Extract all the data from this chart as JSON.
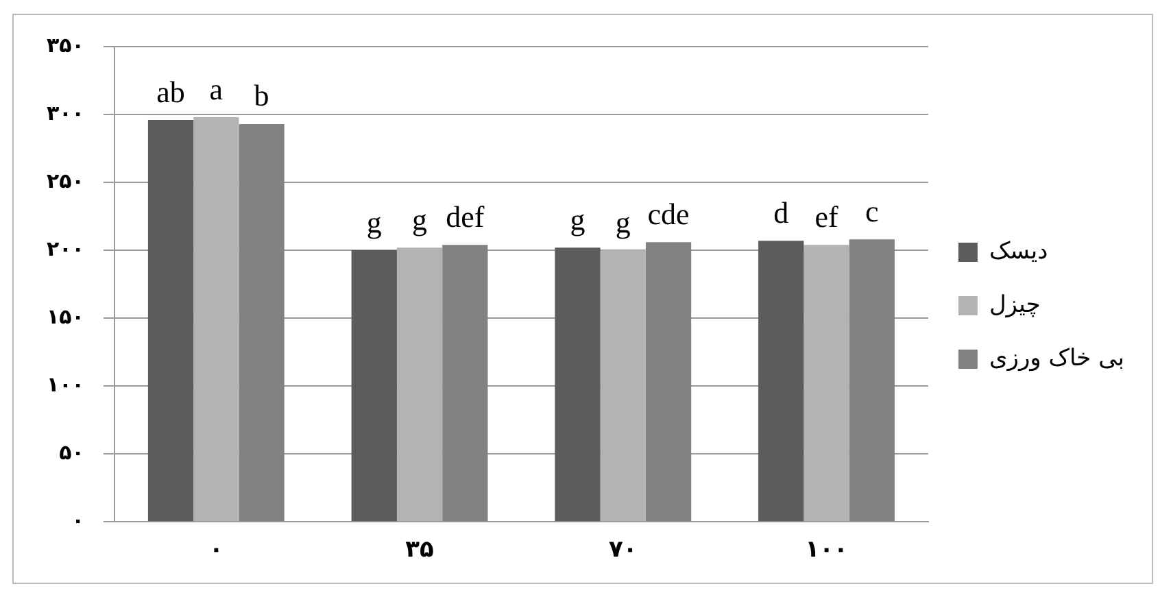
{
  "chart_data": {
    "type": "bar",
    "categories": [
      "۰",
      "۳۵",
      "۷۰",
      "۱۰۰"
    ],
    "series": [
      {
        "name": "دیسک",
        "color": "#5c5c5c",
        "values": [
          296,
          200,
          202,
          207
        ],
        "value_labels": [
          "ab",
          "g",
          "g",
          "d"
        ]
      },
      {
        "name": "چیزل",
        "color": "#b3b3b3",
        "values": [
          298,
          202,
          200,
          204
        ],
        "value_labels": [
          "a",
          "g",
          "g",
          "ef"
        ]
      },
      {
        "name": "بی خاک ورزی",
        "color": "#828282",
        "values": [
          293,
          204,
          206,
          208
        ],
        "value_labels": [
          "b",
          "def",
          "cde",
          "c"
        ]
      }
    ],
    "ylim": [
      0,
      350
    ],
    "yticks": [
      {
        "value": 0,
        "label": "۰"
      },
      {
        "value": 50,
        "label": "۵۰"
      },
      {
        "value": 100,
        "label": "۱۰۰"
      },
      {
        "value": 150,
        "label": "۱۵۰"
      },
      {
        "value": 200,
        "label": "۲۰۰"
      },
      {
        "value": 250,
        "label": "۲۵۰"
      },
      {
        "value": 300,
        "label": "۳۰۰"
      },
      {
        "value": 350,
        "label": "۳۵۰"
      }
    ],
    "grid": "y",
    "legend": "right"
  }
}
